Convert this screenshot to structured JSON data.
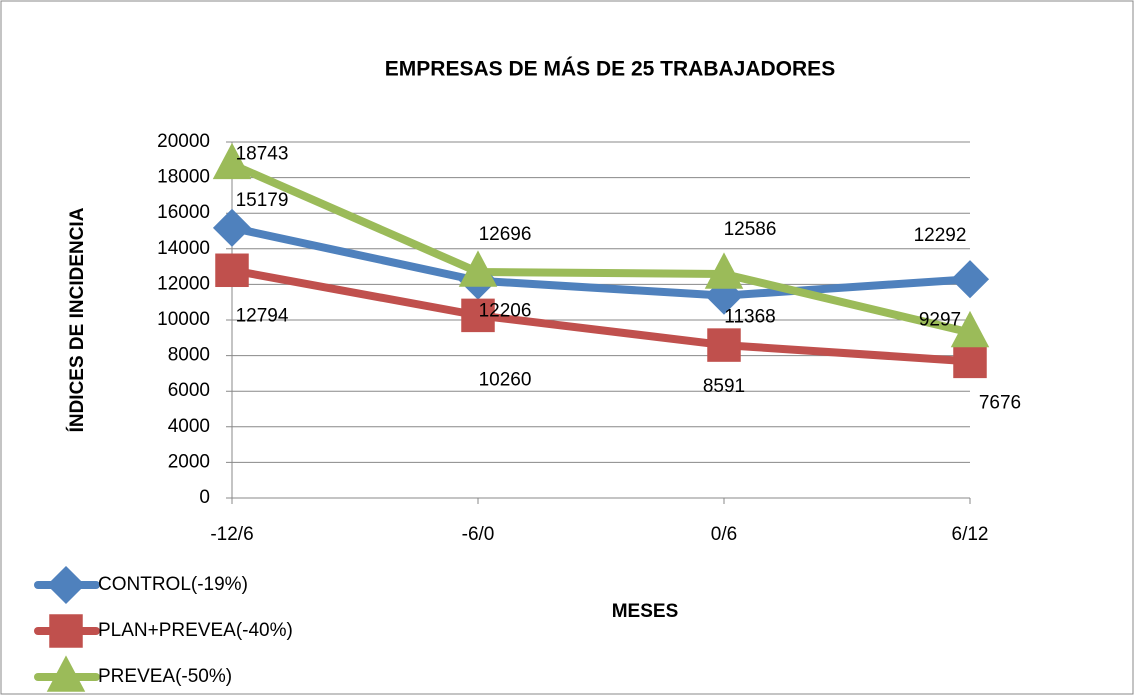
{
  "chart_data": {
    "type": "line",
    "title": "EMPRESAS DE MÁS DE 25 TRABAJADORES",
    "x_label": "MESES",
    "y_label": "ÍNDICES DE INCIDENCIA",
    "categories": [
      "-12/6",
      "-6/0",
      "0/6",
      "6/12"
    ],
    "series": [
      {
        "name": "CONTROL(-19%)",
        "color": "#4f81bd",
        "marker": "diamond",
        "values": [
          15179,
          12206,
          11368,
          12292
        ]
      },
      {
        "name": "PLAN+PREVEA(-40%)",
        "color": "#c0504d",
        "marker": "square",
        "values": [
          12794,
          10260,
          8591,
          7676
        ]
      },
      {
        "name": "PREVEA(-50%)",
        "color": "#9bbb59",
        "marker": "triangle",
        "values": [
          18743,
          12696,
          12586,
          9297
        ]
      }
    ],
    "ylim": [
      0,
      20000
    ],
    "yticks": [
      0,
      2000,
      4000,
      6000,
      8000,
      10000,
      12000,
      14000,
      16000,
      18000,
      20000
    ],
    "grid": true,
    "legend": "bottom-left"
  }
}
